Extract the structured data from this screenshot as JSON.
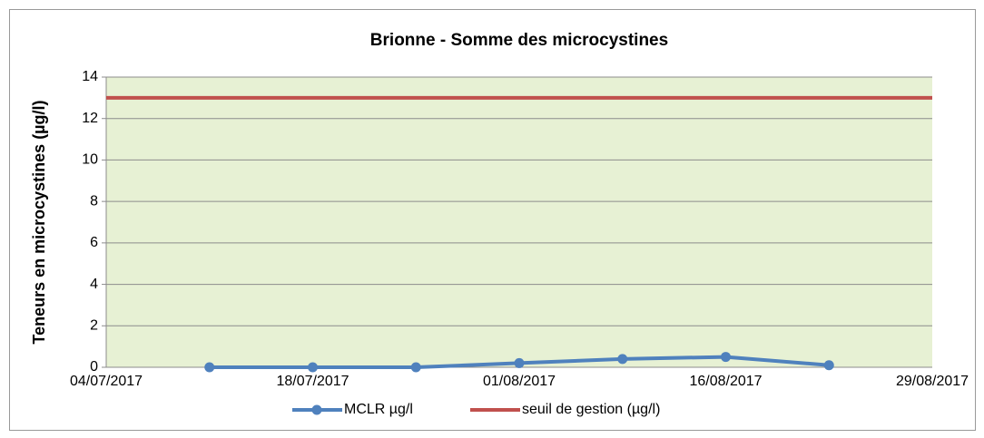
{
  "chart_data": {
    "type": "line",
    "title": "Brionne - Somme des microcystines",
    "y_label": "Teneurs en microcystines (µg/l)",
    "categories": [
      "04/07/2017",
      null,
      "18/07/2017",
      null,
      "01/08/2017",
      null,
      "16/08/2017",
      null,
      "29/08/2017"
    ],
    "series": [
      {
        "name": "MCLR µg/l",
        "color": "#4f81bd",
        "marker": true,
        "values": [
          null,
          0,
          0,
          0,
          0.2,
          0.4,
          0.5,
          0.1,
          null
        ]
      },
      {
        "name": "seuil de gestion (µg/l)",
        "color": "#c0504d",
        "marker": false,
        "values": [
          13,
          13,
          13,
          13,
          13,
          13,
          13,
          13,
          13
        ]
      }
    ],
    "ylim": [
      0,
      14
    ],
    "yticks": [
      0,
      2,
      4,
      6,
      8,
      10,
      12,
      14
    ],
    "grid": true,
    "legend": "bottom"
  }
}
